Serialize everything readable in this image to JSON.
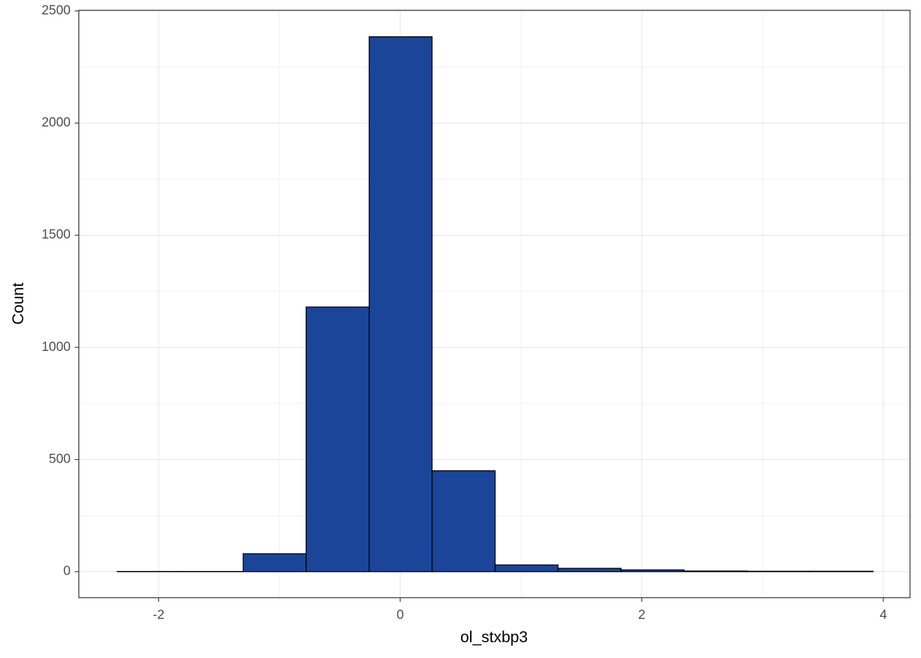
{
  "chart_data": {
    "type": "histogram",
    "x_label": "ol_stxbp3",
    "y_label": "Count",
    "bins": [
      -2.343,
      -1.822,
      -1.3,
      -0.779,
      -0.257,
      0.264,
      0.786,
      1.307,
      1.829,
      2.35,
      2.872,
      3.393,
      3.915
    ],
    "values": [
      1,
      1,
      80,
      1180,
      2385,
      450,
      30,
      15,
      8,
      3,
      2,
      2
    ],
    "color": "#1a4599",
    "edge_color": "#000000",
    "xlim": [
      -2.661,
      4.221
    ],
    "ylim": [
      -116,
      2503
    ],
    "xticks": [
      -2,
      0,
      2,
      4
    ],
    "yticks": [
      0,
      500,
      1000,
      1500,
      2000,
      2500
    ],
    "x_minor_grid": [
      -1,
      1,
      3
    ],
    "y_minor_grid": [
      250,
      750,
      1250,
      1750,
      2250
    ],
    "grid": true
  }
}
